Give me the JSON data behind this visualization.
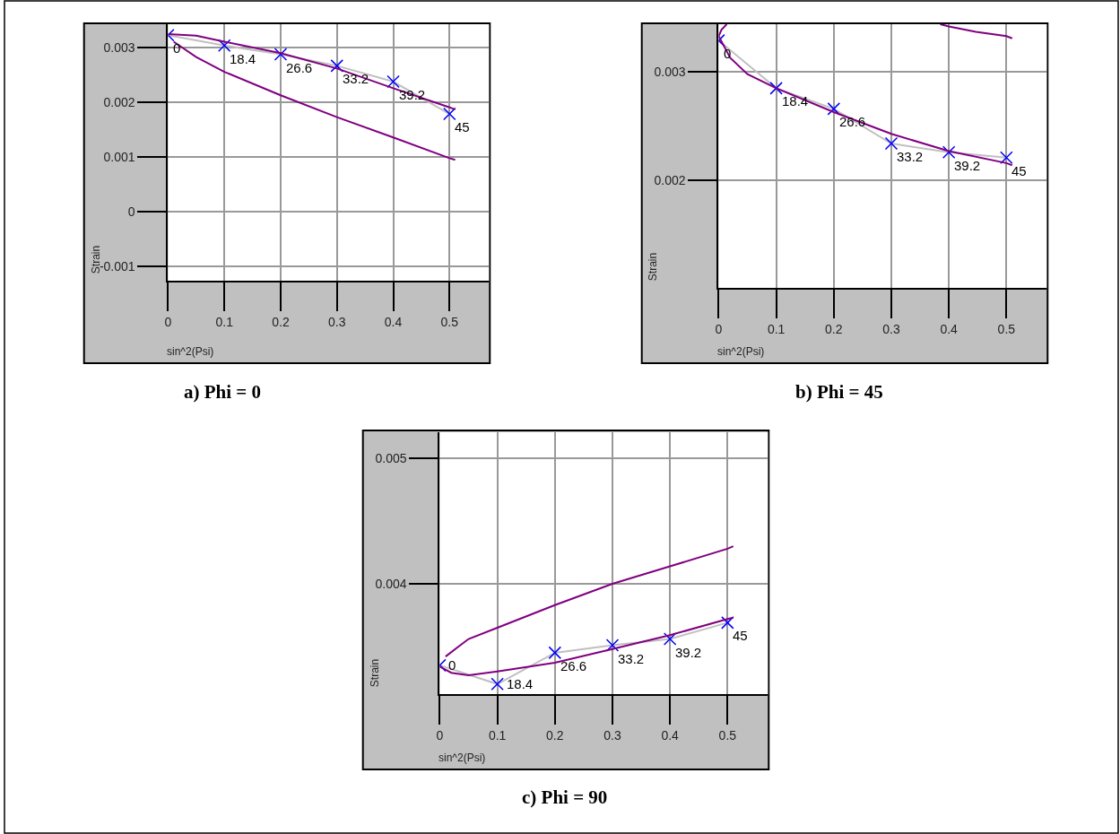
{
  "chart_data": [
    {
      "type": "line",
      "title": "a) Phi = 0",
      "xlabel": "sin^2(Psi)",
      "ylabel": "Strain",
      "xlim": [
        0,
        0.57
      ],
      "ylim": [
        -0.00126,
        0.00343
      ],
      "xticks": [
        0,
        0.1,
        0.2,
        0.3,
        0.4,
        0.5
      ],
      "yticks": [
        -0.001,
        0,
        0.001,
        0.002,
        0.003
      ],
      "grid": true,
      "series": [
        {
          "color": "#c0c0c0",
          "marker": "none",
          "x": [
            0,
            0.1,
            0.2,
            0.3,
            0.4,
            0.5
          ],
          "values": [
            0.00323,
            0.00304,
            0.00288,
            0.00267,
            0.00238,
            0.00179
          ]
        },
        {
          "type": "scatter",
          "color": "#0000ff",
          "marker": "cross",
          "x": [
            0,
            0.1,
            0.2,
            0.3,
            0.4,
            0.5
          ],
          "values": [
            0.00323,
            0.00304,
            0.00288,
            0.00267,
            0.00238,
            0.00179
          ]
        },
        {
          "color": "#800080",
          "marker": "none",
          "x": [
            0,
            0.05,
            0.1,
            0.2,
            0.3,
            0.4,
            0.5,
            0.51
          ],
          "values": [
            0.00325,
            0.00322,
            0.00311,
            0.0029,
            0.00262,
            0.00226,
            0.00191,
            0.00187
          ]
        },
        {
          "color": "#800080",
          "marker": "none",
          "x": [
            0.01,
            0.05,
            0.1,
            0.2,
            0.3,
            0.4,
            0.5,
            0.51
          ],
          "values": [
            0.00311,
            0.00283,
            0.00256,
            0.00213,
            0.00173,
            0.00136,
            0.00098,
            0.00095
          ]
        }
      ],
      "annotations": [
        {
          "text": "0",
          "x": 0,
          "y": 0.00323
        },
        {
          "text": "18.4",
          "x": 0.1,
          "y": 0.00304
        },
        {
          "text": "26.6",
          "x": 0.2,
          "y": 0.00288
        },
        {
          "text": "33.2",
          "x": 0.3,
          "y": 0.00267
        },
        {
          "text": "39.2",
          "x": 0.4,
          "y": 0.00238
        },
        {
          "text": "45",
          "x": 0.5,
          "y": 0.00179
        }
      ]
    },
    {
      "type": "line",
      "title": "b) Phi = 45",
      "xlabel": "sin^2(Psi)",
      "ylabel": "Strain",
      "xlim": [
        0,
        0.57
      ],
      "ylim": [
        0.00101,
        0.00344
      ],
      "xticks": [
        0,
        0.1,
        0.2,
        0.3,
        0.4,
        0.5
      ],
      "yticks": [
        0.002,
        0.003
      ],
      "grid": true,
      "series": [
        {
          "color": "#c0c0c0",
          "marker": "none",
          "x": [
            0,
            0.1,
            0.2,
            0.3,
            0.4,
            0.5
          ],
          "values": [
            0.00329,
            0.00285,
            0.00266,
            0.00234,
            0.00226,
            0.00221
          ]
        },
        {
          "type": "scatter",
          "color": "#0000ff",
          "marker": "cross",
          "x": [
            0,
            0.1,
            0.2,
            0.3,
            0.4,
            0.5
          ],
          "values": [
            0.00329,
            0.00285,
            0.00266,
            0.00234,
            0.00226,
            0.00221
          ]
        },
        {
          "color": "#800080",
          "marker": "none",
          "x": [
            0.014,
            0.005,
            0,
            0.02,
            0.05,
            0.1,
            0.2,
            0.3,
            0.4,
            0.5,
            0.51
          ],
          "values": [
            0.00344,
            0.00339,
            0.00333,
            0.00313,
            0.00298,
            0.00285,
            0.00263,
            0.00243,
            0.00227,
            0.00216,
            0.00214
          ]
        },
        {
          "color": "#800080",
          "marker": "none",
          "x": [
            0.385,
            0.4,
            0.447,
            0.5,
            0.51
          ],
          "values": [
            0.00344,
            0.00342,
            0.00337,
            0.00333,
            0.00331
          ]
        }
      ],
      "annotations": [
        {
          "text": "0",
          "x": 0,
          "y": 0.00329
        },
        {
          "text": "18.4",
          "x": 0.1,
          "y": 0.00285
        },
        {
          "text": "26.6",
          "x": 0.2,
          "y": 0.00266
        },
        {
          "text": "33.2",
          "x": 0.3,
          "y": 0.00234
        },
        {
          "text": "39.2",
          "x": 0.4,
          "y": 0.00226
        },
        {
          "text": "45",
          "x": 0.5,
          "y": 0.00221
        }
      ]
    },
    {
      "type": "line",
      "title": "c) Phi = 90",
      "xlabel": "sin^2(Psi)",
      "ylabel": "Strain",
      "xlim": [
        0,
        0.57
      ],
      "ylim": [
        0.00312,
        0.00521
      ],
      "xticks": [
        0,
        0.1,
        0.2,
        0.3,
        0.4,
        0.5
      ],
      "yticks": [
        0.004,
        0.005
      ],
      "grid": true,
      "series": [
        {
          "color": "#c0c0c0",
          "marker": "none",
          "x": [
            0,
            0.1,
            0.2,
            0.3,
            0.4,
            0.5
          ],
          "values": [
            0.00335,
            0.0032,
            0.00345,
            0.00351,
            0.00356,
            0.00369
          ]
        },
        {
          "type": "scatter",
          "color": "#0000ff",
          "marker": "cross",
          "x": [
            0,
            0.1,
            0.2,
            0.3,
            0.4,
            0.5
          ],
          "values": [
            0.00335,
            0.0032,
            0.00345,
            0.00351,
            0.00356,
            0.00369
          ]
        },
        {
          "color": "#800080",
          "marker": "none",
          "x": [
            0,
            0.02,
            0.05,
            0.1,
            0.2,
            0.3,
            0.4,
            0.5,
            0.51
          ],
          "values": [
            0.00334,
            0.00329,
            0.00327,
            0.0033,
            0.00337,
            0.00348,
            0.00359,
            0.00372,
            0.00373
          ]
        },
        {
          "color": "#800080",
          "marker": "none",
          "x": [
            0.01,
            0.05,
            0.1,
            0.2,
            0.3,
            0.4,
            0.5,
            0.51
          ],
          "values": [
            0.00342,
            0.00356,
            0.00365,
            0.00383,
            0.004,
            0.00414,
            0.00428,
            0.0043
          ]
        }
      ],
      "annotations": [
        {
          "text": "0",
          "x": 0,
          "y": 0.00335
        },
        {
          "text": "18.4",
          "x": 0.1,
          "y": 0.0032
        },
        {
          "text": "26.6",
          "x": 0.2,
          "y": 0.00345
        },
        {
          "text": "33.2",
          "x": 0.3,
          "y": 0.00351
        },
        {
          "text": "39.2",
          "x": 0.4,
          "y": 0.00356
        },
        {
          "text": "45",
          "x": 0.5,
          "y": 0.00369
        }
      ]
    }
  ]
}
